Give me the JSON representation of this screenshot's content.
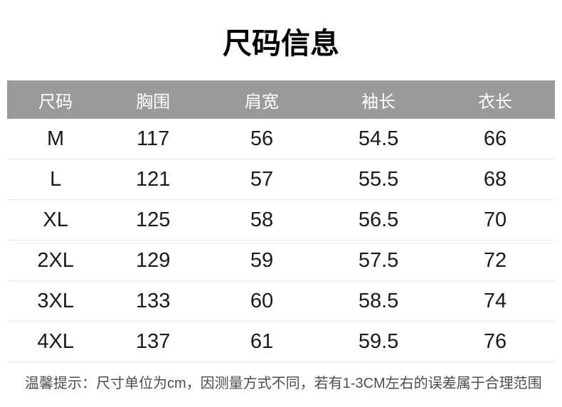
{
  "title": "尺码信息",
  "table": {
    "headers": [
      "尺码",
      "胸围",
      "肩宽",
      "袖长",
      "衣长"
    ],
    "rows": [
      [
        "M",
        "117",
        "56",
        "54.5",
        "66"
      ],
      [
        "L",
        "121",
        "57",
        "55.5",
        "68"
      ],
      [
        "XL",
        "125",
        "58",
        "56.5",
        "70"
      ],
      [
        "2XL",
        "129",
        "59",
        "57.5",
        "72"
      ],
      [
        "3XL",
        "133",
        "60",
        "58.5",
        "74"
      ],
      [
        "4XL",
        "137",
        "61",
        "59.5",
        "76"
      ]
    ]
  },
  "note": "温馨提示：尺寸单位为cm，因测量方式不同，若有1-3CM左右的误差属于合理范围",
  "colors": {
    "background": "#ffffff",
    "title_text": "#000000",
    "header_bg": "#9a9a9a",
    "header_text": "#ffffff",
    "body_text": "#1a1a1a",
    "divider": "#e8e8e8",
    "note_text": "#4d4d4d"
  },
  "chart_data": {
    "type": "table",
    "title": "尺码信息",
    "columns": [
      "尺码",
      "胸围",
      "肩宽",
      "袖长",
      "衣长"
    ],
    "rows": [
      {
        "尺码": "M",
        "胸围": 117,
        "肩宽": 56,
        "袖长": 54.5,
        "衣长": 66
      },
      {
        "尺码": "L",
        "胸围": 121,
        "肩宽": 57,
        "袖长": 55.5,
        "衣长": 68
      },
      {
        "尺码": "XL",
        "胸围": 125,
        "肩宽": 58,
        "袖长": 56.5,
        "衣长": 70
      },
      {
        "尺码": "2XL",
        "胸围": 129,
        "肩宽": 59,
        "袖长": 57.5,
        "衣长": 72
      },
      {
        "尺码": "3XL",
        "胸围": 133,
        "肩宽": 60,
        "袖长": 58.5,
        "衣长": 74
      },
      {
        "尺码": "4XL",
        "胸围": 137,
        "肩宽": 61,
        "袖长": 59.5,
        "衣长": 76
      }
    ],
    "footnote": "温馨提示：尺寸单位为cm，因测量方式不同，若有1-3CM左右的误差属于合理范围"
  }
}
